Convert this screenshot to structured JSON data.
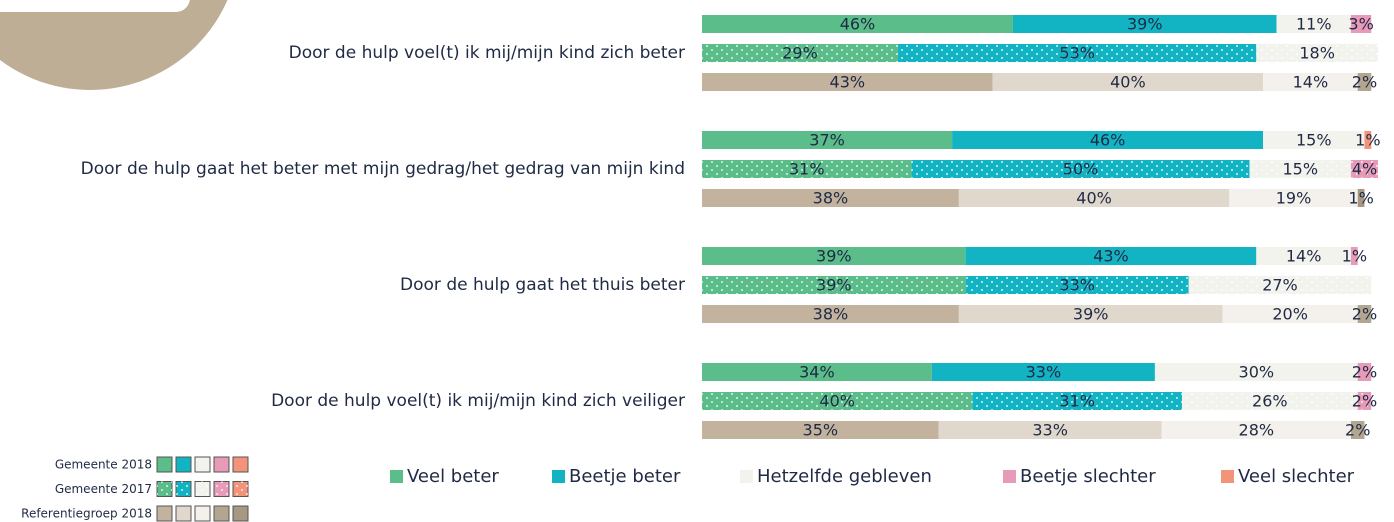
{
  "chart_data": {
    "type": "bar",
    "orientation": "horizontal",
    "stacked": true,
    "xlim": [
      0,
      100
    ],
    "categories": [
      "Door de hulp voel(t) ik mij/mijn kind zich beter",
      "Door de hulp gaat het beter met mijn gedrag/het gedrag van mijn kind",
      "Door de hulp gaat het thuis beter",
      "Door de hulp voel(t) ik mij/mijn kind zich veiliger"
    ],
    "groups": [
      "Gemeente 2018",
      "Gemeente 2017",
      "Referentiegroep 2018"
    ],
    "reference_colors": [
      "#c2b29e",
      "#e0d8cd",
      "#f4f1ec",
      "#b3a691",
      "#a69882"
    ],
    "series": [
      {
        "name": "Veel beter",
        "color": "#5bbd89",
        "values": [
          [
            46,
            29,
            43
          ],
          [
            37,
            31,
            38
          ],
          [
            39,
            39,
            38
          ],
          [
            34,
            40,
            35
          ]
        ],
        "value_labels": [
          [
            "46%",
            "29%",
            "43%"
          ],
          [
            "37%",
            "31%",
            "38%"
          ],
          [
            "39%",
            "39%",
            "38%"
          ],
          [
            "34%",
            "40%",
            "35%"
          ]
        ]
      },
      {
        "name": "Beetje beter",
        "color": "#12b4c4",
        "values": [
          [
            39,
            53,
            40
          ],
          [
            46,
            50,
            40
          ],
          [
            43,
            33,
            39
          ],
          [
            33,
            31,
            33
          ]
        ],
        "value_labels": [
          [
            "39%",
            "53%",
            "40%"
          ],
          [
            "46%",
            "50%",
            "40%"
          ],
          [
            "43%",
            "33%",
            "39%"
          ],
          [
            "33%",
            "31%",
            "33%"
          ]
        ]
      },
      {
        "name": "Hetzelfde gebleven",
        "color": "#f3f3ed",
        "values": [
          [
            11,
            18,
            14
          ],
          [
            15,
            15,
            19
          ],
          [
            14,
            27,
            20
          ],
          [
            30,
            26,
            28
          ]
        ],
        "value_labels": [
          [
            "11%",
            "18%",
            "14%"
          ],
          [
            "15%",
            "15%",
            "19%"
          ],
          [
            "14%",
            "27%",
            "20%"
          ],
          [
            "30%",
            "26%",
            "28%"
          ]
        ]
      },
      {
        "name": "Beetje slechter",
        "color": "#e89bb9",
        "values": [
          [
            3,
            null,
            2
          ],
          [
            null,
            4,
            null
          ],
          [
            1,
            null,
            2
          ],
          [
            2,
            2,
            2
          ]
        ],
        "value_labels": [
          [
            "3%",
            null,
            "2%"
          ],
          [
            null,
            "4%",
            null
          ],
          [
            "1%",
            null,
            "2%"
          ],
          [
            "2%",
            "2%",
            "2%"
          ]
        ]
      },
      {
        "name": "Veel slechter",
        "color": "#f3937a",
        "values": [
          [
            null,
            null,
            null
          ],
          [
            1,
            null,
            1
          ],
          [
            null,
            null,
            null
          ],
          [
            null,
            null,
            null
          ]
        ],
        "value_labels": [
          [
            null,
            null,
            null
          ],
          [
            "1%",
            null,
            "1%"
          ],
          [
            null,
            null,
            null
          ],
          [
            null,
            null,
            null
          ]
        ]
      }
    ]
  }
}
